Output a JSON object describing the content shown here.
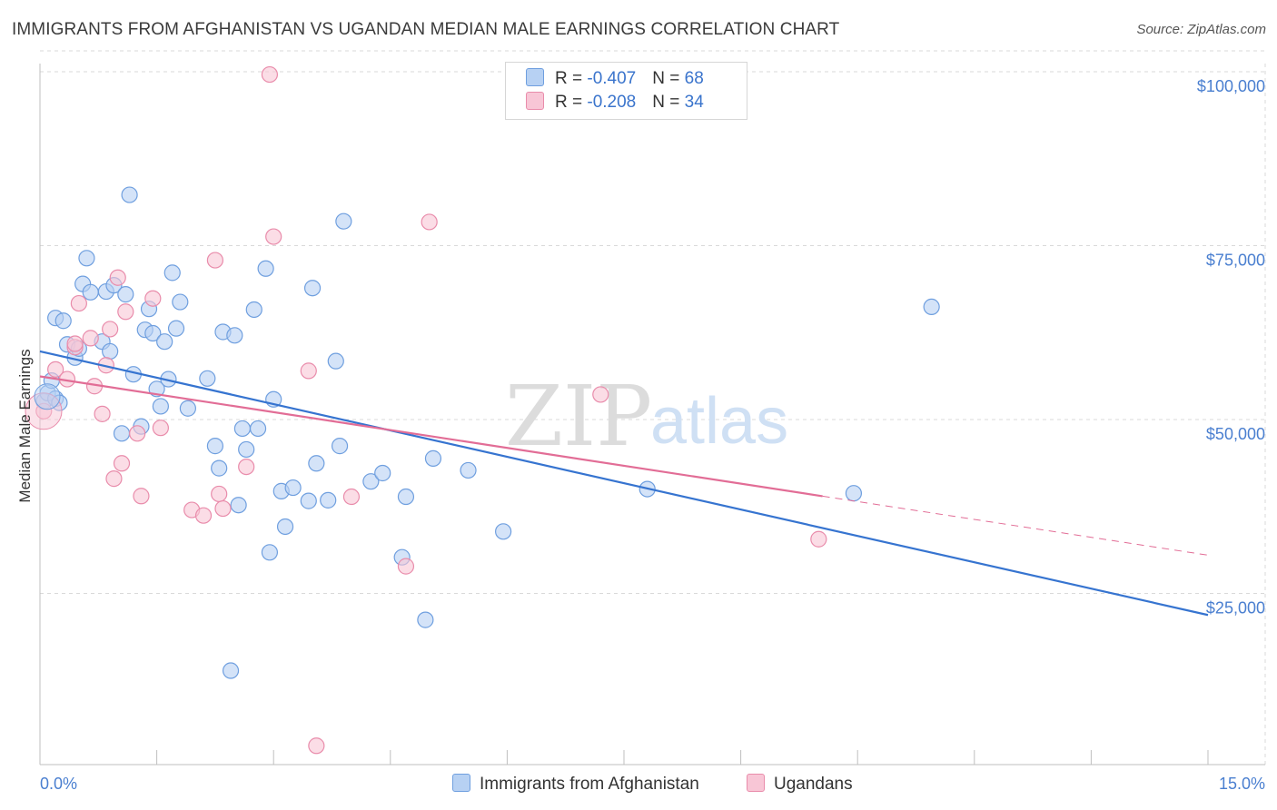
{
  "title": "IMMIGRANTS FROM AFGHANISTAN VS UGANDAN MEDIAN MALE EARNINGS CORRELATION CHART",
  "source": "Source: ZipAtlas.com",
  "watermark": {
    "zip": "ZIP",
    "atlas": "atlas"
  },
  "colors": {
    "blue_fill": "#b7d1f3",
    "blue_stroke": "#6f9fdf",
    "blue_line": "#3674d0",
    "pink_fill": "#f8c6d6",
    "pink_stroke": "#e98cab",
    "pink_line": "#e26d96",
    "axis_text": "#4a7fd0",
    "grid": "#d9d9d9"
  },
  "legend": {
    "rows": [
      {
        "r_label": "R = ",
        "r_value": "-0.407",
        "n_label": "N = ",
        "n_value": "68"
      },
      {
        "r_label": "R = ",
        "r_value": "-0.208",
        "n_label": "N = ",
        "n_value": "34"
      }
    ]
  },
  "bottom_legend": {
    "series1": "Immigrants from Afghanistan",
    "series2": "Ugandans"
  },
  "chart_data": {
    "type": "scatter",
    "title": "IMMIGRANTS FROM AFGHANISTAN VS UGANDAN MEDIAN MALE EARNINGS CORRELATION CHART",
    "xlabel": "",
    "ylabel": "Median Male Earnings",
    "xlim": [
      0,
      15
    ],
    "ylim": [
      0,
      103000
    ],
    "x_tick_labels": {
      "min": "0.0%",
      "max": "15.0%"
    },
    "y_ticks": [
      {
        "value": 25000,
        "label": "$25,000"
      },
      {
        "value": 50000,
        "label": "$50,000"
      },
      {
        "value": 75000,
        "label": "$75,000"
      },
      {
        "value": 100000,
        "label": "$100,000"
      }
    ],
    "grid": true,
    "series": [
      {
        "name": "Immigrants from Afghanistan",
        "color": "blue",
        "r": -0.407,
        "n": 68,
        "trend": {
          "x": [
            0,
            15
          ],
          "y": [
            59800,
            21900
          ],
          "dashed_x": null
        },
        "points": [
          [
            0.05,
            52600
          ],
          [
            0.1,
            53800
          ],
          [
            0.15,
            55600
          ],
          [
            0.2,
            53000
          ],
          [
            0.2,
            64600
          ],
          [
            0.25,
            52400
          ],
          [
            0.3,
            64200
          ],
          [
            0.35,
            60800
          ],
          [
            0.45,
            58900
          ],
          [
            0.5,
            60200
          ],
          [
            0.55,
            69500
          ],
          [
            0.6,
            73200
          ],
          [
            0.65,
            68300
          ],
          [
            0.8,
            61200
          ],
          [
            0.85,
            68400
          ],
          [
            0.9,
            59800
          ],
          [
            0.95,
            69300
          ],
          [
            1.05,
            48000
          ],
          [
            1.1,
            68000
          ],
          [
            1.15,
            82300
          ],
          [
            1.2,
            56500
          ],
          [
            1.3,
            49000
          ],
          [
            1.35,
            62900
          ],
          [
            1.4,
            65900
          ],
          [
            1.45,
            62400
          ],
          [
            1.5,
            54400
          ],
          [
            1.55,
            51900
          ],
          [
            1.6,
            61200
          ],
          [
            1.65,
            55800
          ],
          [
            1.7,
            71100
          ],
          [
            1.75,
            63100
          ],
          [
            1.8,
            66900
          ],
          [
            1.9,
            51600
          ],
          [
            2.15,
            55900
          ],
          [
            2.25,
            46200
          ],
          [
            2.3,
            43000
          ],
          [
            2.35,
            62600
          ],
          [
            2.5,
            62100
          ],
          [
            2.45,
            13900
          ],
          [
            2.55,
            37700
          ],
          [
            2.6,
            48700
          ],
          [
            2.65,
            45700
          ],
          [
            2.75,
            65800
          ],
          [
            2.8,
            48700
          ],
          [
            2.9,
            71700
          ],
          [
            2.95,
            30900
          ],
          [
            3.0,
            52900
          ],
          [
            3.1,
            39700
          ],
          [
            3.15,
            34600
          ],
          [
            3.25,
            40200
          ],
          [
            3.45,
            38300
          ],
          [
            3.5,
            68900
          ],
          [
            3.55,
            43700
          ],
          [
            3.7,
            38400
          ],
          [
            3.8,
            58400
          ],
          [
            3.85,
            46200
          ],
          [
            3.9,
            78500
          ],
          [
            4.25,
            41100
          ],
          [
            4.4,
            42300
          ],
          [
            4.65,
            30200
          ],
          [
            4.7,
            38900
          ],
          [
            4.95,
            21200
          ],
          [
            5.05,
            44400
          ],
          [
            5.5,
            42700
          ],
          [
            5.95,
            33900
          ],
          [
            7.8,
            40000
          ],
          [
            10.45,
            39400
          ],
          [
            11.45,
            66200
          ]
        ]
      },
      {
        "name": "Ugandans",
        "color": "pink",
        "r": -0.208,
        "n": 34,
        "trend": {
          "x": [
            0,
            15
          ],
          "y": [
            56200,
            30500
          ],
          "dashed_x": 10.05
        },
        "points": [
          [
            0.05,
            51200
          ],
          [
            0.2,
            57200
          ],
          [
            0.35,
            55800
          ],
          [
            0.45,
            60400
          ],
          [
            0.5,
            66700
          ],
          [
            0.65,
            61700
          ],
          [
            0.7,
            54800
          ],
          [
            0.8,
            50800
          ],
          [
            0.85,
            57800
          ],
          [
            0.9,
            63000
          ],
          [
            0.95,
            41500
          ],
          [
            1.0,
            70400
          ],
          [
            1.05,
            43700
          ],
          [
            1.1,
            65500
          ],
          [
            1.25,
            48000
          ],
          [
            1.3,
            39000
          ],
          [
            1.45,
            67400
          ],
          [
            1.55,
            48800
          ],
          [
            1.95,
            37000
          ],
          [
            2.1,
            36200
          ],
          [
            2.25,
            72900
          ],
          [
            2.3,
            39300
          ],
          [
            2.35,
            37200
          ],
          [
            2.65,
            43200
          ],
          [
            2.95,
            99600
          ],
          [
            3.0,
            76300
          ],
          [
            3.45,
            57000
          ],
          [
            3.55,
            3100
          ],
          [
            4.0,
            38900
          ],
          [
            4.7,
            28900
          ],
          [
            5.0,
            78400
          ],
          [
            7.2,
            53600
          ],
          [
            10.0,
            32800
          ],
          [
            0.45,
            60900
          ]
        ]
      }
    ]
  },
  "axis": {
    "y_axis_title": "Median Male Earnings"
  }
}
